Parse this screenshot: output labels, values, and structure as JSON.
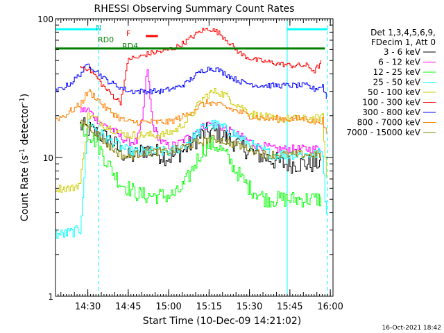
{
  "chart_data": {
    "type": "line",
    "title": "RHESSI Observing Summary Count Rates",
    "xlabel": "Start Time (10-Dec-09 14:21:02)",
    "ylabel": "Count Rate (s",
    "ylabel_sup": "-1",
    "ylabel_tail": " detector",
    "ylabel_close": ")",
    "y_scale": "log",
    "ylim": [
      1,
      100
    ],
    "xlim_minutes": [
      -3.0,
      100.0
    ],
    "y_ticks": [
      {
        "value": 1,
        "label": "1"
      },
      {
        "value": 10,
        "label": "10"
      },
      {
        "value": 100,
        "label": "100"
      }
    ],
    "x_ticks": [
      {
        "minute": 9,
        "label": "14:30"
      },
      {
        "minute": 24,
        "label": "14:45"
      },
      {
        "minute": 39,
        "label": "15:00"
      },
      {
        "minute": 54,
        "label": "15:15"
      },
      {
        "minute": 69,
        "label": "15:30"
      },
      {
        "minute": 84,
        "label": "15:45"
      },
      {
        "minute": 99,
        "label": "16:00"
      }
    ],
    "legend": {
      "placement": "right",
      "header": [
        "Det 1,3,4,5,6,9,",
        "FDecim 1, Att 0"
      ],
      "entries": [
        {
          "label": "3 - 6 keV",
          "color": "#000000"
        },
        {
          "label": "6 - 12 keV",
          "color": "#ff00ff"
        },
        {
          "label": "12 - 25 keV",
          "color": "#00ff00"
        },
        {
          "label": "25 - 50 keV",
          "color": "#00ffff"
        },
        {
          "label": "50 - 100 keV",
          "color": "#cccc00"
        },
        {
          "label": "100 - 300 keV",
          "color": "#ff0000"
        },
        {
          "label": "300 - 800 keV",
          "color": "#0000ff"
        },
        {
          "label": "800 - 7000 keV",
          "color": "#ff8000"
        },
        {
          "label": "7000 - 15000 keV",
          "color": "#808000"
        }
      ]
    },
    "annotations": {
      "N": "N",
      "F": "F",
      "RD0": "RD0",
      "RD4": "RD4",
      "timestamp": "16-Oct-2021 18:42"
    },
    "bars": [
      {
        "name": "night",
        "label_key": "N",
        "color": "#00ffff",
        "x": [
          -3,
          13
        ],
        "y": 84
      },
      {
        "name": "night",
        "color": "#00ffff",
        "x": [
          83,
          98
        ],
        "y": 84
      },
      {
        "name": "flare",
        "label_key": "F",
        "color": "#ff0000",
        "x": [
          30.5,
          35
        ],
        "y": 75
      },
      {
        "name": "rd4",
        "label_key": "RD4",
        "color": "#008000",
        "x": [
          -3,
          97
        ],
        "y": 61
      }
    ],
    "vlines": [
      {
        "minute": -3,
        "color": "#00ffff",
        "style": "solid"
      },
      {
        "minute": 13,
        "color": "#00ffff",
        "style": "dashed"
      },
      {
        "minute": 83,
        "color": "#00ffff",
        "style": "solid"
      },
      {
        "minute": 98,
        "color": "#00ffff",
        "style": "dashed"
      }
    ],
    "series": [
      {
        "name": "3 - 6 keV",
        "color": "#000000",
        "x": [
          6,
          9,
          12,
          15,
          18,
          21,
          24,
          27,
          30,
          33,
          36,
          39,
          42,
          45,
          48,
          51,
          54,
          57,
          60,
          63,
          66,
          69,
          72,
          75,
          78,
          81,
          84,
          87,
          90,
          93,
          96
        ],
        "y": [
          17,
          16,
          15,
          14,
          13,
          11,
          10,
          10.5,
          11.5,
          11,
          10.5,
          10,
          10.5,
          11.5,
          13,
          14.5,
          15.5,
          15,
          14,
          13,
          12,
          11,
          10.5,
          10,
          9.5,
          9,
          9,
          9,
          9,
          9,
          9.5
        ],
        "noise": 0.07
      },
      {
        "name": "6 - 12 keV",
        "color": "#ff00ff",
        "x": [
          6,
          9,
          12,
          15,
          18,
          21,
          24,
          27,
          29,
          30,
          31,
          32,
          33,
          36,
          39,
          42,
          45,
          48,
          51,
          54,
          57,
          60,
          63,
          66,
          69,
          72,
          75,
          78,
          81,
          84,
          87,
          90,
          93,
          96
        ],
        "y": [
          22,
          22,
          19,
          17,
          16,
          14,
          13,
          13,
          18,
          30,
          44,
          26,
          17,
          13,
          12,
          12.5,
          13.5,
          15,
          16.5,
          17.5,
          17,
          16,
          15,
          14,
          13,
          12,
          12,
          11.5,
          11.5,
          11.5,
          11.5,
          11.5,
          11.5,
          12
        ],
        "noise": 0.03
      },
      {
        "name": "12 - 25 keV",
        "color": "#00ff00",
        "x": [
          6,
          9,
          12,
          15,
          18,
          21,
          24,
          27,
          30,
          33,
          36,
          39,
          42,
          45,
          48,
          51,
          54,
          57,
          60,
          63,
          66,
          69,
          72,
          75,
          78,
          81,
          84,
          87,
          90,
          93,
          96
        ],
        "y": [
          17,
          15,
          13,
          10,
          8,
          6.5,
          6,
          5.5,
          5.3,
          5.3,
          5.3,
          5.3,
          5.5,
          6.5,
          8.5,
          11,
          12.5,
          12,
          10.5,
          8.5,
          7,
          6,
          5.5,
          5,
          5,
          5,
          5,
          5,
          5,
          5,
          5
        ],
        "noise": 0.06
      },
      {
        "name": "25 - 50 keV",
        "color": "#00ffff",
        "x": [
          -3,
          0,
          3,
          6,
          9,
          12,
          15,
          18,
          21,
          24,
          27,
          30,
          33,
          36,
          39,
          42,
          45,
          48,
          51,
          54,
          57,
          60,
          63,
          66,
          69,
          72,
          75,
          78,
          81,
          84,
          87,
          90,
          93,
          96,
          98
        ],
        "y": [
          2.8,
          2.8,
          2.9,
          3,
          18,
          16,
          14,
          13,
          12,
          11,
          11,
          11,
          11,
          11,
          11,
          11.5,
          12.5,
          14,
          16,
          17.5,
          17,
          16,
          15,
          13.5,
          12.5,
          11.5,
          11,
          10.5,
          10.5,
          10.5,
          10.5,
          10.5,
          10.5,
          11,
          2.5
        ],
        "noise": 0.04
      },
      {
        "name": "50 - 100 keV",
        "color": "#cccc00",
        "x": [
          -3,
          0,
          3,
          6,
          9,
          12,
          15,
          18,
          21,
          24,
          27,
          30,
          33,
          36,
          39,
          42,
          45,
          48,
          51,
          54,
          57,
          60,
          63,
          66,
          69,
          72,
          75,
          78,
          81,
          84,
          87,
          90,
          93,
          96,
          98
        ],
        "y": [
          6,
          6,
          6,
          6.5,
          20,
          19,
          17,
          16,
          15,
          14.5,
          14.5,
          14.5,
          14.5,
          14.5,
          15,
          16,
          18,
          21,
          26,
          29,
          30,
          28,
          25,
          23,
          21,
          20,
          19.5,
          19,
          19,
          19,
          19,
          19,
          19,
          19.5,
          5
        ],
        "noise": 0.03
      },
      {
        "name": "100 - 300 keV",
        "color": "#ff0000",
        "x": [
          6,
          9,
          12,
          15,
          18,
          21,
          24,
          27,
          30,
          33,
          36,
          39,
          42,
          45,
          48,
          51,
          54,
          57,
          60,
          63,
          66,
          69,
          72,
          75,
          78,
          81,
          84,
          87,
          90,
          93,
          96
        ],
        "y": [
          45,
          44,
          38,
          32,
          28,
          25,
          52,
          52,
          55,
          57,
          58,
          60,
          63,
          68,
          75,
          82,
          85,
          80,
          72,
          62,
          55,
          52,
          50,
          49,
          48,
          47,
          46,
          46,
          46,
          42,
          50
        ],
        "noise": 0.02
      },
      {
        "name": "300 - 800 keV",
        "color": "#0000ff",
        "x": [
          -3,
          0,
          3,
          6,
          9,
          12,
          15,
          18,
          21,
          24,
          27,
          30,
          33,
          36,
          39,
          42,
          45,
          48,
          51,
          54,
          57,
          60,
          63,
          66,
          69,
          72,
          75,
          78,
          81,
          84,
          87,
          90,
          93,
          96,
          98
        ],
        "y": [
          30,
          32,
          35,
          40,
          47,
          42,
          37,
          34,
          32,
          30,
          30,
          30,
          30,
          30,
          31,
          32,
          34,
          38,
          42,
          44,
          43,
          40,
          37,
          35,
          34,
          33,
          33,
          33,
          33,
          33,
          33,
          33,
          31,
          33,
          25
        ],
        "noise": 0.02
      },
      {
        "name": "800 - 7000 keV",
        "color": "#ff8000",
        "x": [
          -3,
          0,
          3,
          6,
          9,
          12,
          15,
          18,
          21,
          24,
          27,
          30,
          33,
          36,
          39,
          42,
          45,
          48,
          51,
          54,
          57,
          60,
          63,
          66,
          69,
          72,
          75,
          78,
          81,
          84,
          87,
          90,
          93,
          96,
          98
        ],
        "y": [
          19,
          20,
          22,
          24,
          30,
          27,
          23,
          21,
          19,
          18,
          18,
          18,
          18,
          18,
          18,
          19,
          20,
          22,
          24,
          25,
          24,
          23,
          22,
          21,
          20,
          19.5,
          19,
          19,
          19,
          19,
          19,
          19,
          18,
          18.5,
          13
        ],
        "noise": 0.025
      },
      {
        "name": "7000 - 15000 keV",
        "color": "#808000",
        "x": [
          6,
          9,
          12,
          15,
          18,
          21,
          24,
          27,
          30,
          33,
          36,
          39,
          42,
          45,
          48,
          51,
          54,
          57,
          60,
          63,
          66,
          69,
          72,
          75,
          78,
          81,
          84,
          87,
          90,
          93,
          96
        ],
        "y": [
          18,
          17,
          15,
          13,
          11.5,
          10.5,
          10,
          10.5,
          11,
          11,
          11,
          11,
          11.5,
          12,
          12.5,
          13,
          13.5,
          13.5,
          13,
          12.5,
          12,
          11.5,
          11,
          10.5,
          10.5,
          10.5,
          10.5,
          10.5,
          10.5,
          10.5,
          10.5
        ],
        "noise": 0.03
      }
    ]
  }
}
